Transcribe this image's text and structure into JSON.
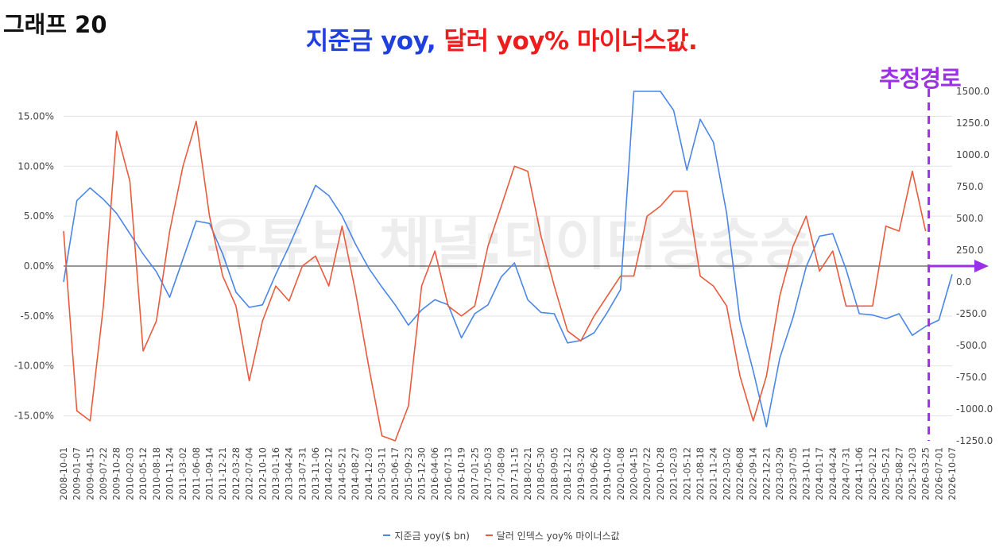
{
  "header": {
    "graph_label": "그래프 20",
    "title_part1": "지준금 yoy,",
    "title_part2": "달러 yoy% 마이너스값.",
    "projection_label": "추정경로"
  },
  "colors": {
    "reserves": "#4a86e8",
    "dollar": "#ea5a3c",
    "projection": "#9b30e6",
    "title_blue": "#1f3fe0",
    "title_red": "#ee1d1d"
  },
  "watermark": "유튜브 채널:데이터승승승",
  "chart_data": {
    "type": "line",
    "title": "지준금 yoy, 달러 yoy% 마이너스값.",
    "xlabel": "",
    "ylabel_left": "",
    "ylabel_right": "",
    "y_left": {
      "min": -17.5,
      "max": 17.5,
      "ticks": [
        "15.00%",
        "10.00%",
        "5.00%",
        "0.00%",
        "-5.00%",
        "-10.00%",
        "-15.00%"
      ],
      "tick_values": [
        15,
        10,
        5,
        0,
        -5,
        -10,
        -15
      ]
    },
    "y_right": {
      "min": -1250,
      "max": 1500,
      "ticks": [
        "1500.0",
        "1250.0",
        "1000.0",
        "750.0",
        "500.0",
        "250.0",
        "0.0",
        "-250.0",
        "-500.0",
        "-750.0",
        "-1000.0",
        "-1250.0"
      ],
      "tick_values": [
        1500,
        1250,
        1000,
        750,
        500,
        250,
        0,
        -250,
        -500,
        -750,
        -1000,
        -1250
      ]
    },
    "grid": true,
    "legend_position": "bottom",
    "x_tick_labels": [
      "2008-10-01",
      "2009-01-07",
      "2009-04-15",
      "2009-07-22",
      "2009-10-28",
      "2010-02-03",
      "2010-05-12",
      "2010-08-18",
      "2010-11-24",
      "2011-03-02",
      "2011-06-08",
      "2011-09-14",
      "2011-12-21",
      "2012-03-28",
      "2012-07-04",
      "2012-10-10",
      "2013-01-16",
      "2013-04-24",
      "2013-07-31",
      "2013-11-06",
      "2014-02-12",
      "2014-05-21",
      "2014-08-27",
      "2014-12-03",
      "2015-03-11",
      "2015-06-17",
      "2015-09-23",
      "2015-12-30",
      "2016-04-06",
      "2016-07-13",
      "2016-10-19",
      "2017-01-25",
      "2017-05-03",
      "2017-08-09",
      "2017-11-15",
      "2018-02-21",
      "2018-05-30",
      "2018-09-05",
      "2018-12-12",
      "2019-03-20",
      "2019-06-26",
      "2019-10-02",
      "2020-01-08",
      "2020-04-15",
      "2020-07-22",
      "2020-10-28",
      "2021-02-03",
      "2021-05-12",
      "2021-08-18",
      "2021-11-24",
      "2022-03-02",
      "2022-06-08",
      "2022-09-14",
      "2022-12-21",
      "2023-03-29",
      "2023-07-05",
      "2023-10-11",
      "2024-01-17",
      "2024-04-24",
      "2024-07-31",
      "2024-11-06",
      "2025-02-12",
      "2025-05-21",
      "2025-08-27",
      "2025-12-03",
      "2026-03-25",
      "2026-07-01",
      "2026-10-07"
    ],
    "projection_marker": "2026-03-25",
    "series": [
      {
        "name": "지준금 yoy($ bn)",
        "axis": "right",
        "x": [
          "2008-10-01",
          "2009-01-07",
          "2009-04-15",
          "2009-07-22",
          "2009-10-28",
          "2010-02-03",
          "2010-05-12",
          "2010-08-18",
          "2010-11-24",
          "2011-03-02",
          "2011-06-08",
          "2011-09-14",
          "2011-12-21",
          "2012-03-28",
          "2012-07-04",
          "2012-10-10",
          "2013-01-16",
          "2013-04-24",
          "2013-07-31",
          "2013-11-06",
          "2014-02-12",
          "2014-05-21",
          "2014-08-27",
          "2014-12-03",
          "2015-03-11",
          "2015-06-17",
          "2015-09-23",
          "2015-12-30",
          "2016-04-06",
          "2016-07-13",
          "2016-10-19",
          "2017-01-25",
          "2017-05-03",
          "2017-08-09",
          "2017-11-15",
          "2018-02-21",
          "2018-05-30",
          "2018-09-05",
          "2018-12-12",
          "2019-03-20",
          "2019-06-26",
          "2019-10-02",
          "2020-01-08",
          "2020-04-15",
          "2020-07-22",
          "2020-10-28",
          "2021-02-03",
          "2021-05-12",
          "2021-08-18",
          "2021-11-24",
          "2022-03-02",
          "2022-06-08",
          "2022-09-14",
          "2022-12-21",
          "2023-03-29",
          "2023-07-05",
          "2023-10-11",
          "2024-01-17",
          "2024-04-24",
          "2024-07-31",
          "2024-11-06",
          "2025-02-12",
          "2025-05-21",
          "2025-08-27",
          "2025-12-03",
          "2026-03-25",
          "2026-07-01",
          "2026-10-07"
        ],
        "values": [
          0,
          640,
          740,
          650,
          540,
          380,
          220,
          80,
          -120,
          180,
          480,
          460,
          220,
          -80,
          -200,
          -180,
          60,
          280,
          520,
          760,
          680,
          520,
          300,
          110,
          -40,
          -180,
          -340,
          -220,
          -140,
          -180,
          -440,
          -250,
          -180,
          40,
          150,
          -140,
          -240,
          -250,
          -480,
          -460,
          -400,
          -240,
          -60,
          1500,
          1500,
          1500,
          1350,
          880,
          1280,
          1100,
          540,
          -300,
          -700,
          -1140,
          -600,
          -280,
          120,
          360,
          380,
          100,
          -250,
          -260,
          -290,
          -250,
          -420,
          -350,
          -300,
          60
        ]
      },
      {
        "name": "달러 인덱스 yoy% 마이너스값",
        "axis": "left",
        "x": [
          "2008-10-01",
          "2009-01-07",
          "2009-04-15",
          "2009-07-22",
          "2009-10-28",
          "2010-02-03",
          "2010-05-12",
          "2010-08-18",
          "2010-11-24",
          "2011-03-02",
          "2011-06-08",
          "2011-09-14",
          "2011-12-21",
          "2012-03-28",
          "2012-07-04",
          "2012-10-10",
          "2013-01-16",
          "2013-04-24",
          "2013-07-31",
          "2013-11-06",
          "2014-02-12",
          "2014-05-21",
          "2014-08-27",
          "2014-12-03",
          "2015-03-11",
          "2015-06-17",
          "2015-09-23",
          "2015-12-30",
          "2016-04-06",
          "2016-07-13",
          "2016-10-19",
          "2017-01-25",
          "2017-05-03",
          "2017-08-09",
          "2017-11-15",
          "2018-02-21",
          "2018-05-30",
          "2018-09-05",
          "2018-12-12",
          "2019-03-20",
          "2019-06-26",
          "2019-10-02",
          "2020-01-08",
          "2020-04-15",
          "2020-07-22",
          "2020-10-28",
          "2021-02-03",
          "2021-05-12",
          "2021-08-18",
          "2021-11-24",
          "2022-03-02",
          "2022-06-08",
          "2022-09-14",
          "2022-12-21",
          "2023-03-29",
          "2023-07-05",
          "2023-10-11",
          "2024-01-17",
          "2024-04-24",
          "2024-07-31",
          "2024-11-06",
          "2025-02-12",
          "2025-05-21",
          "2025-08-27",
          "2025-12-03",
          "2026-03-25",
          "2026-07-01",
          "2026-10-07"
        ],
        "values": [
          3.5,
          -14.5,
          -15.5,
          -4,
          13.5,
          8.5,
          -8.5,
          -5.5,
          3.5,
          10,
          14.5,
          5,
          -1,
          -4,
          -11.5,
          -5.5,
          -2,
          -3.5,
          0,
          1,
          -2,
          4,
          -2.5,
          -10,
          -17,
          -17.5,
          -14,
          -2,
          1.5,
          -4,
          -5,
          -4,
          2,
          6,
          10,
          9.5,
          3,
          -2,
          -6.5,
          -7.5,
          -5,
          -3,
          -1,
          -1,
          5,
          6,
          7.5,
          7.5,
          -1,
          -2,
          -4,
          -11,
          -15.5,
          -11,
          -3,
          2,
          5,
          -0.5,
          1.5,
          -4,
          -4,
          -4,
          4,
          3.5,
          9.5,
          3.5,
          null,
          null
        ]
      }
    ]
  },
  "legend": {
    "item1": "지준금 yoy($ bn)",
    "item2": "달러 인덱스 yoy% 마이너스값"
  }
}
